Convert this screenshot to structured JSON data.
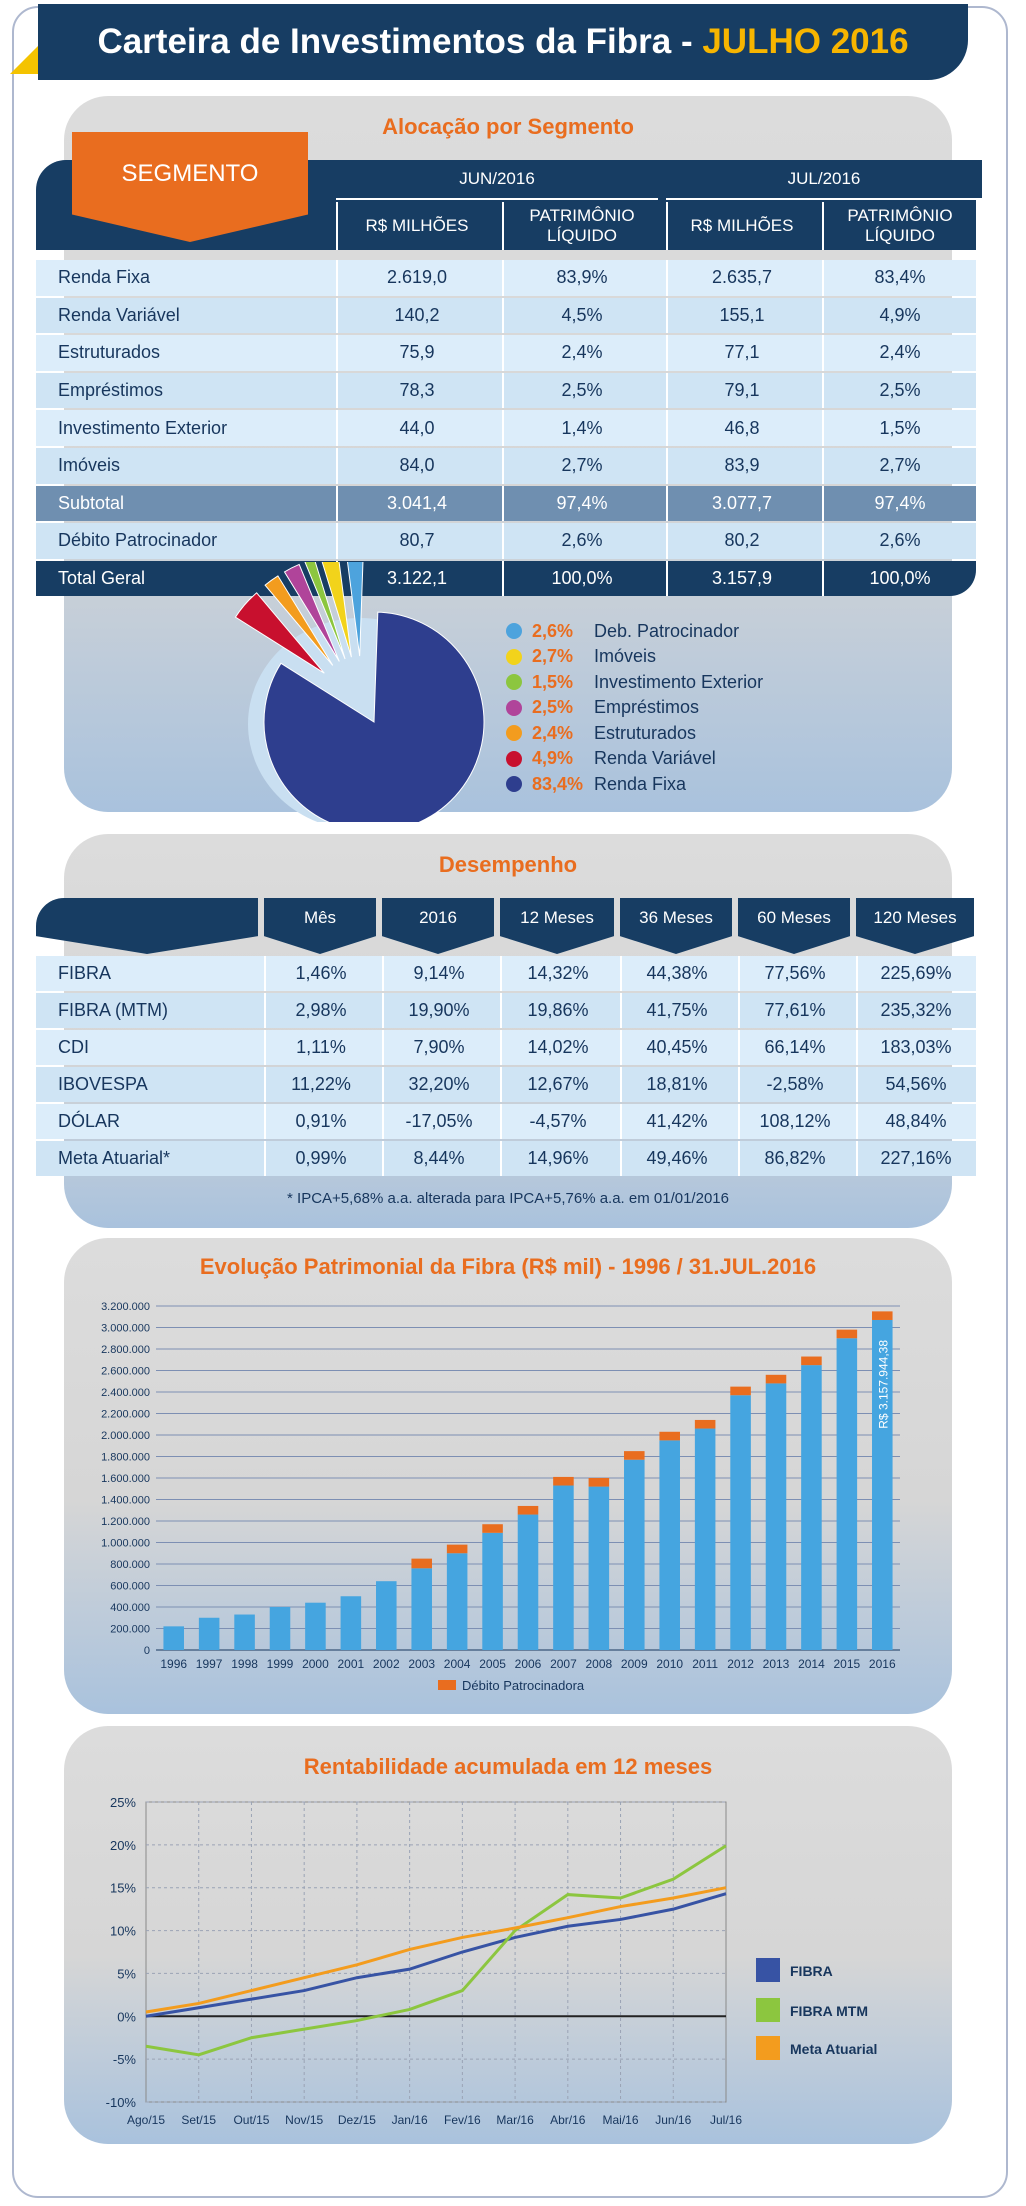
{
  "header": {
    "title": "Carteira de Investimentos da Fibra - ",
    "highlight": "JULHO 2016"
  },
  "alocacao": {
    "title": "Alocação por Segmento",
    "segment_label": "SEGMENTO",
    "periods": [
      "JUN/2016",
      "JUL/2016"
    ],
    "subheaders": [
      "R$ MILHÕES",
      "PATRIMÔNIO LÍQUIDO",
      "R$ MILHÕES",
      "PATRIMÔNIO LÍQUIDO"
    ],
    "rows": [
      {
        "label": "Renda Fixa",
        "values": [
          "2.619,0",
          "83,9%",
          "2.635,7",
          "83,4%"
        ]
      },
      {
        "label": "Renda Variável",
        "values": [
          "140,2",
          "4,5%",
          "155,1",
          "4,9%"
        ]
      },
      {
        "label": "Estruturados",
        "values": [
          "75,9",
          "2,4%",
          "77,1",
          "2,4%"
        ]
      },
      {
        "label": "Empréstimos",
        "values": [
          "78,3",
          "2,5%",
          "79,1",
          "2,5%"
        ]
      },
      {
        "label": "Investimento Exterior",
        "values": [
          "44,0",
          "1,4%",
          "46,8",
          "1,5%"
        ]
      },
      {
        "label": "Imóveis",
        "values": [
          "84,0",
          "2,7%",
          "83,9",
          "2,7%"
        ]
      },
      {
        "label": "Subtotal",
        "values": [
          "3.041,4",
          "97,4%",
          "3.077,7",
          "97,4%"
        ],
        "style": "subtotal"
      },
      {
        "label": "Débito Patrocinador",
        "values": [
          "80,7",
          "2,6%",
          "80,2",
          "2,6%"
        ]
      },
      {
        "label": "Total Geral",
        "values": [
          "3.122,1",
          "100,0%",
          "3.157,9",
          "100,0%"
        ],
        "style": "total"
      }
    ]
  },
  "pie": {
    "slices": [
      {
        "pct": "2,6%",
        "label": "Deb. Patrocinador",
        "value": 2.6,
        "color": "#4da3dd"
      },
      {
        "pct": "2,7%",
        "label": "Imóveis",
        "value": 2.7,
        "color": "#f2d31b"
      },
      {
        "pct": "1,5%",
        "label": "Investimento Exterior",
        "value": 1.5,
        "color": "#8cc63f"
      },
      {
        "pct": "2,5%",
        "label": "Empréstimos",
        "value": 2.5,
        "color": "#b0449a"
      },
      {
        "pct": "2,4%",
        "label": "Estruturados",
        "value": 2.4,
        "color": "#f39c1e"
      },
      {
        "pct": "4,9%",
        "label": "Renda Variável",
        "value": 4.9,
        "color": "#c8102e"
      },
      {
        "pct": "83,4%",
        "label": "Renda Fixa",
        "value": 83.4,
        "color": "#2e3e8e"
      }
    ]
  },
  "desempenho": {
    "title": "Desempenho",
    "columns": [
      "Mês",
      "2016",
      "12 Meses",
      "36 Meses",
      "60 Meses",
      "120 Meses"
    ],
    "rows": [
      {
        "label": "FIBRA",
        "values": [
          "1,46%",
          "9,14%",
          "14,32%",
          "44,38%",
          "77,56%",
          "225,69%"
        ]
      },
      {
        "label": "FIBRA (MTM)",
        "values": [
          "2,98%",
          "19,90%",
          "19,86%",
          "41,75%",
          "77,61%",
          "235,32%"
        ]
      },
      {
        "label": "CDI",
        "values": [
          "1,11%",
          "7,90%",
          "14,02%",
          "40,45%",
          "66,14%",
          "183,03%"
        ]
      },
      {
        "label": "IBOVESPA",
        "values": [
          "11,22%",
          "32,20%",
          "12,67%",
          "18,81%",
          "-2,58%",
          "54,56%"
        ]
      },
      {
        "label": "DÓLAR",
        "values": [
          "0,91%",
          "-17,05%",
          "-4,57%",
          "41,42%",
          "108,12%",
          "48,84%"
        ]
      },
      {
        "label": "Meta Atuarial*",
        "values": [
          "0,99%",
          "8,44%",
          "14,96%",
          "49,46%",
          "86,82%",
          "227,16%"
        ]
      }
    ],
    "note": "* IPCA+5,68% a.a. alterada para IPCA+5,76% a.a. em 01/01/2016"
  },
  "chart_data": [
    {
      "type": "bar",
      "title": "Evolução Patrimonial da Fibra (R$ mil) - 1996 / 31.JUL.2016",
      "categories": [
        "1996",
        "1997",
        "1998",
        "1999",
        "2000",
        "2001",
        "2002",
        "2003",
        "2004",
        "2005",
        "2006",
        "2007",
        "2008",
        "2009",
        "2010",
        "2011",
        "2012",
        "2013",
        "2014",
        "2015",
        "2016"
      ],
      "series": [
        {
          "values": [
            220000,
            300000,
            330000,
            400000,
            440000,
            500000,
            640000,
            760000,
            900000,
            1090000,
            1260000,
            1530000,
            1520000,
            1770000,
            1950000,
            2060000,
            2370000,
            2480000,
            2650000,
            2900000,
            3070000
          ],
          "color": "#45a5e0"
        },
        {
          "name": "Débito Patrocinadora",
          "values": [
            0,
            0,
            0,
            0,
            0,
            0,
            0,
            90000,
            80000,
            80000,
            80000,
            80000,
            80000,
            80000,
            80000,
            80000,
            80000,
            80000,
            80000,
            80000,
            80000
          ],
          "color": "#e96d1f"
        }
      ],
      "yticks": [
        "0",
        "200.000",
        "400.000",
        "600.000",
        "800.000",
        "1.000.000",
        "1.200.000",
        "1.400.000",
        "1.600.000",
        "1.800.000",
        "2.000.000",
        "2.200.000",
        "2.400.000",
        "2.600.000",
        "2.800.000",
        "3.000.000",
        "3.200.000"
      ],
      "ylim": [
        0,
        3200000
      ],
      "annotation": "R$ 3.157.944,38",
      "legend": "Débito Patrocinadora"
    },
    {
      "type": "line",
      "title": "Rentabilidade acumulada em 12 meses",
      "x": [
        "Ago/15",
        "Set/15",
        "Out/15",
        "Nov/15",
        "Dez/15",
        "Jan/16",
        "Fev/16",
        "Mar/16",
        "Abr/16",
        "Mai/16",
        "Jun/16",
        "Jul/16"
      ],
      "yticks": [
        "25%",
        "20%",
        "15%",
        "10%",
        "5%",
        "0%",
        "-5%",
        "-10%"
      ],
      "ylim": [
        -10,
        25
      ],
      "series": [
        {
          "name": "FIBRA",
          "values": [
            0.0,
            1.0,
            2.0,
            3.0,
            4.5,
            5.5,
            7.5,
            9.2,
            10.5,
            11.3,
            12.5,
            14.3
          ],
          "color": "#3753a4"
        },
        {
          "name": "FIBRA MTM",
          "values": [
            -3.5,
            -4.5,
            -2.5,
            -1.5,
            -0.5,
            0.8,
            3.0,
            10.0,
            14.2,
            13.8,
            16.0,
            19.9
          ],
          "color": "#8cc63f"
        },
        {
          "name": "Meta Atuarial",
          "values": [
            0.5,
            1.5,
            3.0,
            4.5,
            6.0,
            7.8,
            9.2,
            10.3,
            11.5,
            12.8,
            13.8,
            15.0
          ],
          "color": "#f39c1e"
        }
      ]
    }
  ]
}
